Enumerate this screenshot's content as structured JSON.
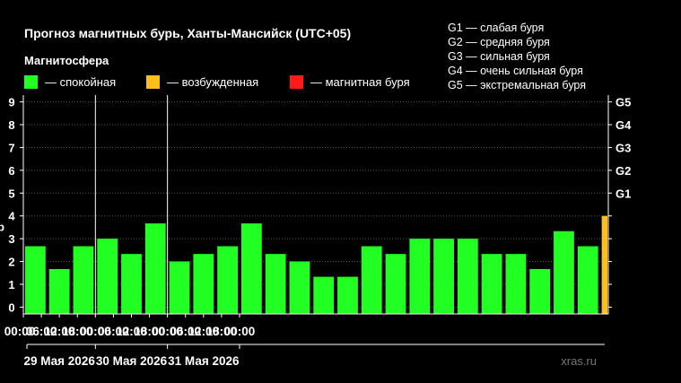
{
  "colors": {
    "quiet": "#22ff22",
    "excited": "#ffbf1a",
    "storm": "#ff1a1a",
    "background": "#000000",
    "foreground": "#ffffff"
  },
  "chart_data": {
    "type": "bar",
    "title": "Прогноз магнитных бурь, Ханты-Мансийск (UTC+05)",
    "legend_title": "Магнитосфера",
    "legend": [
      {
        "label": "— спокойная",
        "color": "#22ff22"
      },
      {
        "label": "— возбужденная",
        "color": "#ffbf1a"
      },
      {
        "label": "— магнитная буря",
        "color": "#ff1a1a"
      }
    ],
    "storm_levels": [
      "G1 — слабая буря",
      "G2 — средняя буря",
      "G3 — сильная буря",
      "G4 — очень сильная буря",
      "G5 — экстремальная буря"
    ],
    "ylim": [
      -0.3,
      9.3
    ],
    "y_ticks": [
      "0",
      "1",
      "2",
      "3",
      "4",
      "5",
      "6",
      "7",
      "8",
      "9"
    ],
    "y_left_cut_label": "р",
    "y_right_ticks": [
      {
        "value": 5,
        "label": "G1"
      },
      {
        "value": 6,
        "label": "G2"
      },
      {
        "value": 7,
        "label": "G3"
      },
      {
        "value": 8,
        "label": "G4"
      },
      {
        "value": 9,
        "label": "G5"
      }
    ],
    "x_ticks": [
      "00:00",
      "06:00",
      "12:00",
      "18:00",
      "00:00",
      "06:00",
      "12:00",
      "18:00",
      "00:00",
      "06:00",
      "12:00",
      "18:00",
      "00:00"
    ],
    "days": [
      "29 Мая 2026",
      "30 Мая 2026",
      "31 Мая 2026"
    ],
    "values": [
      2.67,
      1.67,
      2.67,
      3.0,
      2.33,
      3.67,
      2.0,
      2.33,
      2.67,
      3.67,
      2.33,
      2.0,
      1.33,
      1.33,
      2.67,
      2.33,
      3.0,
      3.0,
      3.0,
      2.33,
      2.33,
      1.67,
      3.33,
      2.67,
      4.0
    ],
    "bar_colors": [
      "quiet",
      "quiet",
      "quiet",
      "quiet",
      "quiet",
      "quiet",
      "quiet",
      "quiet",
      "quiet",
      "quiet",
      "quiet",
      "quiet",
      "quiet",
      "quiet",
      "quiet",
      "quiet",
      "quiet",
      "quiet",
      "quiet",
      "quiet",
      "quiet",
      "quiet",
      "quiet",
      "quiet",
      "excited"
    ],
    "grid": true,
    "legend_placement": "top"
  },
  "watermark": "xras.ru"
}
